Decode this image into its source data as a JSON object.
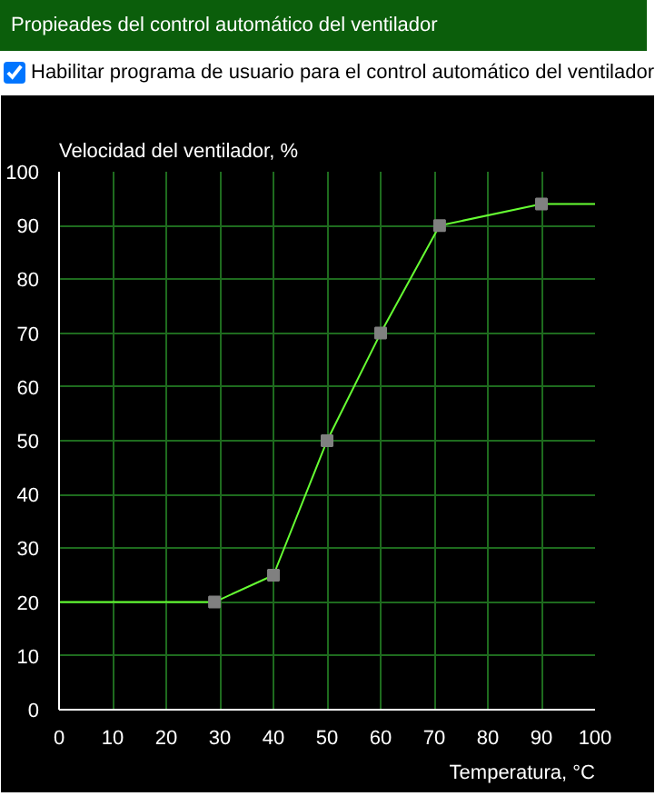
{
  "chart_data": {
    "type": "line",
    "title": "Propieades del control automático del ventilador",
    "subtitle": "Habilitar programa de usuario para el control automático del ventilador",
    "xlabel": "Temperatura, °C",
    "ylabel": "Velocidad del ventilador, %",
    "series": [
      {
        "color": "#66ff33",
        "x": [
          0,
          29,
          40,
          50,
          60,
          71,
          90,
          100
        ],
        "values": [
          20,
          20,
          25,
          50,
          70,
          90,
          94,
          94
        ],
        "marker": "none"
      },
      {
        "type": "scatter",
        "color": "#808080",
        "x": [
          29,
          40,
          50,
          60,
          71,
          90
        ],
        "values": [
          20,
          25,
          50,
          70,
          90,
          94
        ],
        "marker": "square"
      }
    ],
    "xlim": [
      0,
      100
    ],
    "ylim": [
      0,
      100
    ],
    "xticks": [
      0,
      10,
      20,
      30,
      40,
      50,
      60,
      70,
      80,
      90,
      100
    ],
    "yticks": [
      0,
      10,
      20,
      30,
      40,
      50,
      60,
      70,
      80,
      90,
      100
    ],
    "grid": true
  }
}
